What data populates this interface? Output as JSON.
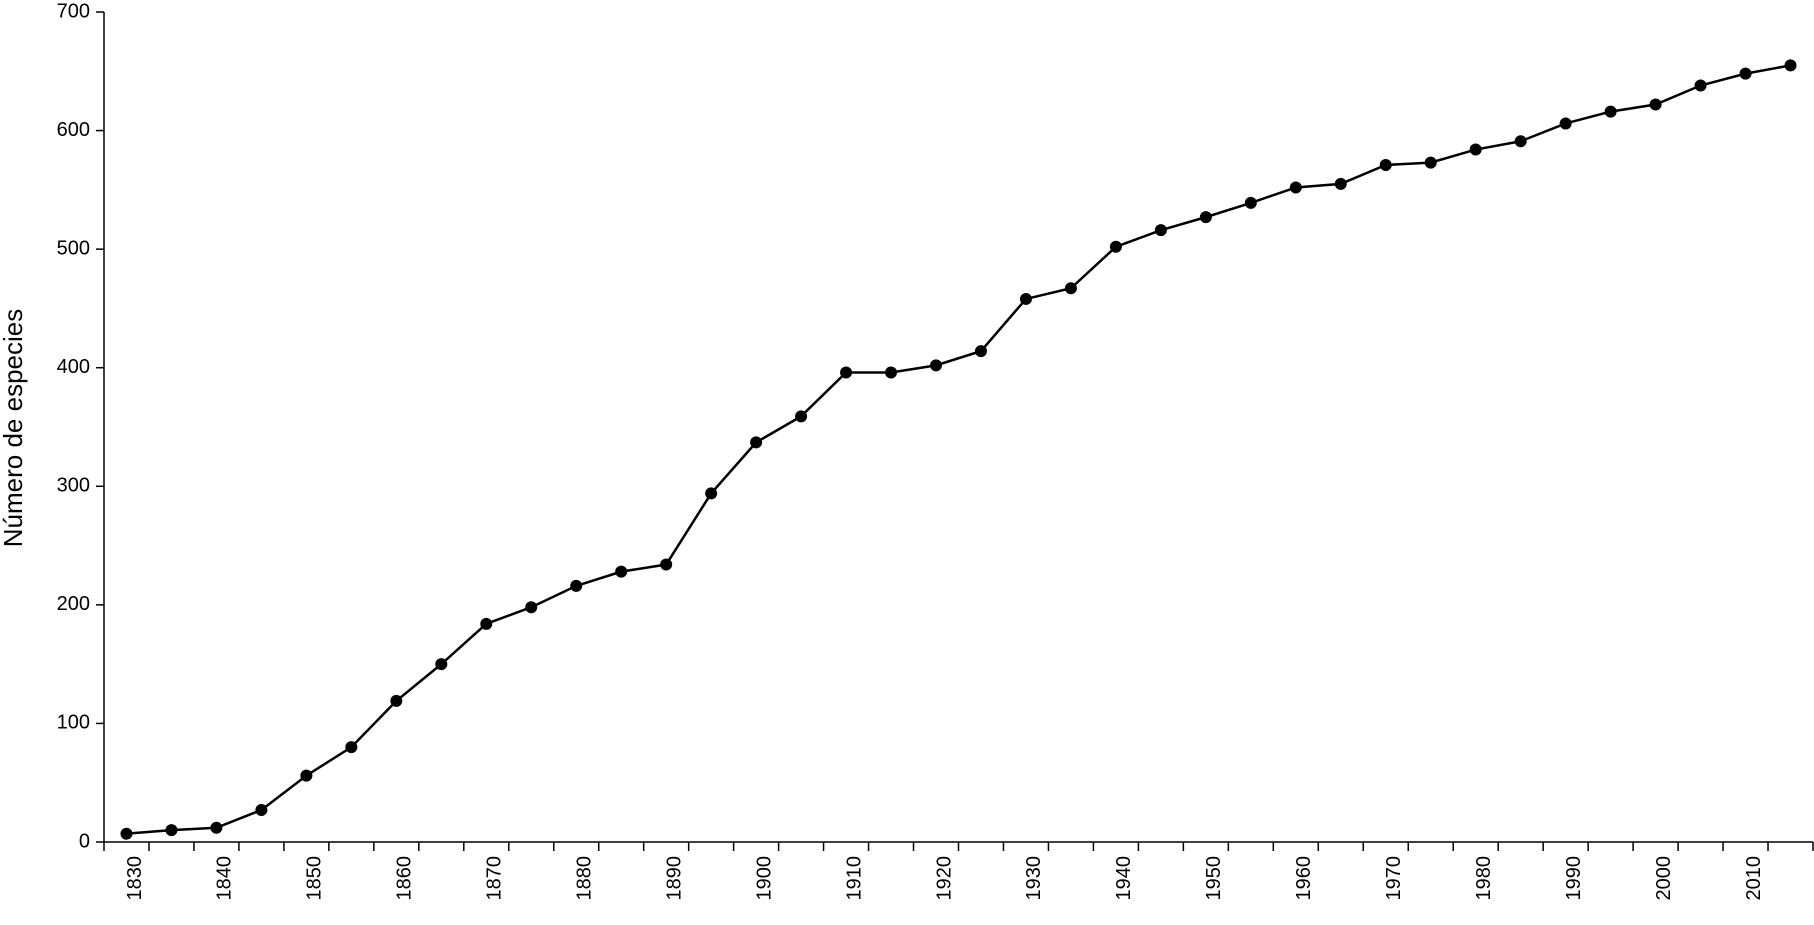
{
  "chart_data": {
    "type": "line",
    "y_label": "Número de especies",
    "categories": [
      "1830",
      null,
      "1840",
      null,
      "1850",
      null,
      "1860",
      null,
      "1870",
      null,
      "1880",
      null,
      "1890",
      null,
      "1900",
      null,
      "1910",
      null,
      "1920",
      null,
      "1930",
      null,
      "1940",
      null,
      "1950",
      null,
      "1960",
      null,
      "1970",
      null,
      "1980",
      null,
      "1990",
      null,
      "2000",
      null,
      "2010",
      null
    ],
    "series": [
      {
        "name": "Número de especies",
        "color": "#000000",
        "values": [
          7,
          10,
          12,
          27,
          56,
          80,
          119,
          150,
          184,
          198,
          216,
          228,
          234,
          294,
          337,
          359,
          396,
          396,
          402,
          414,
          458,
          467,
          502,
          516,
          527,
          539,
          552,
          555,
          571,
          573,
          584,
          591,
          606,
          616,
          622,
          638,
          648,
          655
        ]
      }
    ],
    "ylim": [
      0,
      700
    ],
    "yticks": [
      0,
      100,
      200,
      300,
      400,
      500,
      600,
      700
    ],
    "grid": false
  }
}
